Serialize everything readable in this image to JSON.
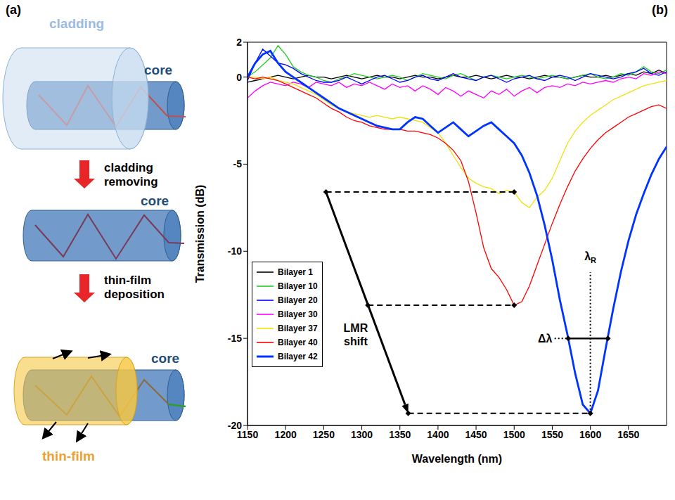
{
  "panel_labels": [
    "(a)",
    "(b)"
  ],
  "diagram": {
    "stage_1": [
      "cladding",
      "core"
    ],
    "step_1": "cladding removing",
    "stage_2": [
      "core"
    ],
    "step_2": "thin-film deposition",
    "stage_3": [
      "thin-film",
      "core"
    ]
  },
  "chart_data": {
    "type": "line",
    "x_label": "Wavelength (nm)",
    "y_label": "Transmission (dB)",
    "xlim": [
      1150,
      1700
    ],
    "xticks": [
      1150,
      1200,
      1250,
      1300,
      1350,
      1400,
      1450,
      1500,
      1550,
      1600,
      1650
    ],
    "ylim": [
      -20,
      2
    ],
    "yticks": [
      -20,
      -15,
      -10,
      -5,
      0,
      2
    ],
    "grid": false,
    "legend": "lower left",
    "x": [
      1150,
      1160,
      1170,
      1180,
      1190,
      1200,
      1210,
      1220,
      1230,
      1240,
      1250,
      1260,
      1270,
      1280,
      1290,
      1300,
      1310,
      1320,
      1330,
      1340,
      1350,
      1360,
      1370,
      1380,
      1390,
      1400,
      1410,
      1420,
      1430,
      1440,
      1450,
      1460,
      1470,
      1480,
      1490,
      1500,
      1510,
      1520,
      1530,
      1540,
      1550,
      1560,
      1570,
      1580,
      1590,
      1600,
      1610,
      1620,
      1630,
      1640,
      1650,
      1660,
      1670,
      1680,
      1690,
      1700
    ],
    "series": [
      {
        "name": "Bilayer 1",
        "color": "#000000",
        "values": [
          -0.3,
          -0.2,
          -0.1,
          0,
          0.1,
          0,
          -0.1,
          0,
          0.1,
          0,
          0,
          -0.1,
          0,
          0.1,
          0,
          -0.1,
          0,
          0.1,
          0,
          0,
          -0.1,
          0,
          0.1,
          0,
          0,
          -0.1,
          0,
          0.1,
          0,
          0,
          0.1,
          0,
          -0.1,
          0,
          0.1,
          0,
          0,
          -0.1,
          0,
          0.1,
          0,
          0,
          -0.1,
          0,
          0.1,
          0,
          0,
          0.1,
          0,
          0.1,
          0.2,
          0.1,
          0.3,
          0.2,
          0.4,
          0.2
        ]
      },
      {
        "name": "Bilayer 10",
        "color": "#22cc22",
        "values": [
          0,
          0.3,
          0.7,
          1.1,
          1.8,
          1.3,
          0.6,
          0.3,
          0.1,
          0,
          -0.2,
          -0.3,
          -0.1,
          0,
          0.2,
          0.1,
          0,
          -0.1,
          0,
          0.1,
          0,
          -0.2,
          0,
          0.2,
          0.1,
          0,
          -0.1,
          0.1,
          0.2,
          0,
          -0.2,
          0,
          0.1,
          0,
          -0.1,
          0,
          0.1,
          0,
          -0.1,
          0,
          0.1,
          0,
          -0.1,
          0,
          0.1,
          0.2,
          0,
          -0.1,
          0,
          0.2,
          0.1,
          0.3,
          0.6,
          0.3,
          0.2,
          0.4
        ]
      },
      {
        "name": "Bilayer 20",
        "color": "#0000ff",
        "values": [
          -0.2,
          0.8,
          1.6,
          1.2,
          0.8,
          0.7,
          0.5,
          0.2,
          0,
          -0.2,
          -0.3,
          -0.3,
          -0.2,
          0,
          -0.2,
          -0.4,
          -0.2,
          0,
          0.1,
          -0.1,
          -0.3,
          -0.2,
          0,
          0.1,
          -0.1,
          -0.2,
          0,
          0.2,
          0,
          -0.1,
          -0.2,
          0,
          0.1,
          -0.1,
          -0.3,
          -0.1,
          0,
          0.1,
          -0.1,
          -0.2,
          0,
          0.1,
          0,
          -0.2,
          0,
          0.2,
          0.1,
          0,
          -0.1,
          0,
          0.2,
          0.3,
          0.5,
          0.2,
          0.1,
          0.3
        ]
      },
      {
        "name": "Bilayer 30",
        "color": "#ff00ff",
        "values": [
          -1.2,
          -0.8,
          -0.5,
          -0.3,
          -0.4,
          -0.5,
          -0.3,
          -0.4,
          -0.6,
          -0.3,
          -0.4,
          -0.5,
          -0.3,
          -0.6,
          -0.4,
          -0.5,
          -0.3,
          -0.5,
          -0.7,
          -0.4,
          -0.6,
          -0.5,
          -0.8,
          -0.5,
          -0.7,
          -1.0,
          -0.6,
          -0.8,
          -1.1,
          -0.8,
          -1.0,
          -1.2,
          -0.8,
          -1.0,
          -0.7,
          -1.1,
          -0.8,
          -0.6,
          -0.9,
          -0.6,
          -0.5,
          -0.6,
          -0.4,
          -0.5,
          -0.3,
          -0.4,
          -0.3,
          -0.2,
          -0.3,
          -0.1,
          0,
          -0.1,
          0.2,
          0.1,
          0.3,
          0.2
        ]
      },
      {
        "name": "Bilayer 37",
        "color": "#f0e010",
        "values": [
          0,
          0,
          -0.1,
          0,
          -0.2,
          -0.3,
          -0.4,
          -0.6,
          -0.8,
          -1.0,
          -1.3,
          -1.6,
          -1.8,
          -2.0,
          -2.1,
          -2.2,
          -2.3,
          -2.2,
          -2.3,
          -2.4,
          -2.3,
          -2.4,
          -2.5,
          -2.6,
          -2.9,
          -3.2,
          -3.8,
          -4.5,
          -5.2,
          -5.8,
          -6.1,
          -6.3,
          -6.4,
          -6.7,
          -6.5,
          -6.6,
          -7.2,
          -7.5,
          -6.9,
          -6.5,
          -5.8,
          -4.8,
          -3.8,
          -3.1,
          -2.6,
          -2.2,
          -1.9,
          -1.6,
          -1.3,
          -1.1,
          -0.9,
          -0.7,
          -0.5,
          -0.4,
          -0.3,
          -0.2
        ]
      },
      {
        "name": "Bilayer 40",
        "color": "#ff0000",
        "values": [
          0,
          -0.1,
          0,
          -0.1,
          -0.2,
          -0.4,
          -0.6,
          -0.8,
          -1.0,
          -1.2,
          -1.5,
          -1.8,
          -2.0,
          -2.3,
          -2.5,
          -2.6,
          -2.8,
          -2.9,
          -3.0,
          -3.0,
          -3.0,
          -3.1,
          -3.1,
          -3.2,
          -3.3,
          -3.5,
          -3.8,
          -4.2,
          -4.8,
          -6.0,
          -7.8,
          -9.8,
          -11.0,
          -11.5,
          -12.2,
          -13.1,
          -12.9,
          -12.0,
          -10.8,
          -9.6,
          -8.4,
          -7.3,
          -6.3,
          -5.4,
          -4.7,
          -4.1,
          -3.6,
          -3.2,
          -2.9,
          -2.6,
          -2.3,
          -2.1,
          -1.9,
          -1.7,
          -1.6,
          -1.8
        ]
      },
      {
        "name": "Bilayer 42",
        "color": "#0033ff",
        "values": [
          0,
          0.8,
          1.3,
          1.5,
          0.8,
          0.3,
          0,
          -0.3,
          -0.6,
          -0.9,
          -1.2,
          -1.5,
          -1.8,
          -2.0,
          -2.2,
          -2.4,
          -2.6,
          -2.8,
          -2.9,
          -3.0,
          -3.0,
          -2.6,
          -2.3,
          -2.4,
          -2.8,
          -3.2,
          -2.9,
          -2.6,
          -3.0,
          -3.4,
          -3.1,
          -2.8,
          -2.6,
          -3.0,
          -3.4,
          -3.8,
          -4.5,
          -5.5,
          -6.8,
          -8.5,
          -10.5,
          -12.8,
          -14.8,
          -17.0,
          -18.8,
          -19.3,
          -18.0,
          -15.6,
          -13.3,
          -11.2,
          -9.4,
          -7.9,
          -6.7,
          -5.6,
          -4.7,
          -4.0
        ]
      }
    ],
    "annotations": [
      {
        "text": "LMR shift",
        "x": 1292,
        "y": -14.8
      },
      {
        "text": "λ",
        "subscript": "R",
        "x": 1600,
        "y": -10.5
      },
      {
        "text": "Δλ",
        "x": 1550,
        "y": -15
      }
    ],
    "annotation_lines": [
      {
        "style": "arrow",
        "x": [
          1253,
          1361
        ],
        "y": [
          -6.6,
          -19.3
        ]
      },
      {
        "style": "dashed",
        "x": [
          1253,
          1500
        ],
        "y": [
          -6.6,
          -6.6
        ]
      },
      {
        "style": "dashed",
        "x": [
          1308,
          1500
        ],
        "y": [
          -13.1,
          -13.1
        ]
      },
      {
        "style": "dashed",
        "x": [
          1361,
          1600
        ],
        "y": [
          -19.3,
          -19.3
        ]
      },
      {
        "style": "dotted",
        "x": [
          1600,
          1600
        ],
        "y": [
          -19.3,
          -11.2
        ]
      },
      {
        "style": "dotted",
        "x": [
          1553,
          1571
        ],
        "y": [
          -15,
          -15
        ]
      },
      {
        "style": "solid",
        "x": [
          1571,
          1623
        ],
        "y": [
          -15,
          -15
        ]
      }
    ]
  }
}
